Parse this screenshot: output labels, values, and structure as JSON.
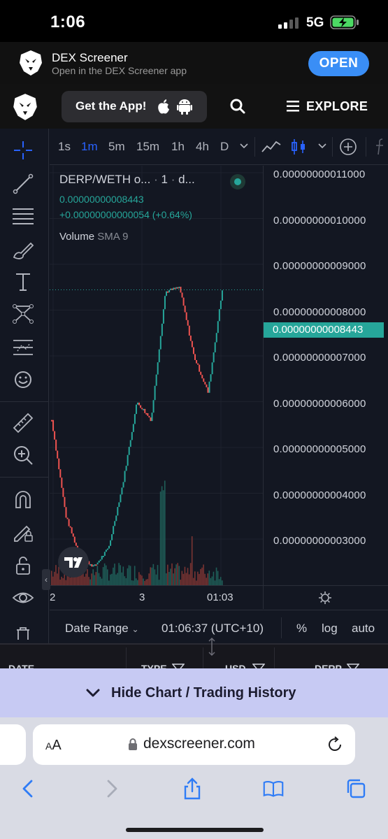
{
  "status_bar": {
    "time": "1:06",
    "network": "5G"
  },
  "banner": {
    "title": "DEX Screener",
    "subtitle": "Open in the DEX Screener app",
    "open_label": "OPEN"
  },
  "header": {
    "get_app_label": "Get the App!",
    "explore_label": "EXPLORE"
  },
  "toolbar": {
    "timeframes": [
      "1s",
      "1m",
      "5m",
      "15m",
      "1h",
      "4h",
      "D"
    ],
    "active_timeframe": "1m"
  },
  "left_tools": [
    "crosshair-icon",
    "trend-line-icon",
    "fib-levels-icon",
    "brush-icon",
    "text-tool-icon",
    "pattern-icon",
    "forecast-icon",
    "emoji-icon",
    "ruler-icon",
    "zoom-in-icon",
    "magnet-icon",
    "lock-drawing-icon",
    "unlock-icon",
    "eye-icon"
  ],
  "legend": {
    "pair": "DERP/WETH o...",
    "interval": "1",
    "source": "d...",
    "price": "0.00000000008443",
    "change": "+0.00000000000054 (+0.64%)",
    "volume_label": "Volume",
    "volume_ma": "SMA 9"
  },
  "price_axis": {
    "labels": [
      "0.00000000011000",
      "0.00000000010000",
      "0.00000000009000",
      "0.00000000008000",
      "0.00000000007000",
      "0.00000000006000",
      "0.00000000005000",
      "0.00000000004000",
      "0.00000000003000"
    ],
    "current": "0.00000000008443"
  },
  "time_axis": {
    "labels": [
      "2",
      "3",
      "01:03"
    ]
  },
  "bottom_bar": {
    "date_range": "Date Range",
    "clock": "01:06:37 (UTC+10)",
    "percent": "%",
    "log": "log",
    "auto": "auto"
  },
  "table": {
    "columns": [
      "DATE",
      "TYPE",
      "USD",
      "DERP"
    ]
  },
  "hide_bar": {
    "label": "Hide Chart / Trading History"
  },
  "safari": {
    "text_size": "AA",
    "url": "dexscreener.com"
  },
  "colors": {
    "up": "#26a69a",
    "down": "#ef5350",
    "accent": "#2962ff",
    "banner_button": "#3a8ef6"
  },
  "chart_data": {
    "type": "candlestick",
    "x": [
      "2",
      "3",
      "01:03"
    ],
    "close_approx": [
      5.6e-11,
      3.5e-11,
      2.6e-11,
      2.4e-11,
      2.8e-11,
      4.2e-11,
      6e-11,
      5.6e-11,
      8.4e-11,
      8.5e-11,
      7e-11,
      6.2e-11,
      8.44e-11
    ],
    "ylim": [
      2.4e-11,
      1.1e-11
    ]
  }
}
